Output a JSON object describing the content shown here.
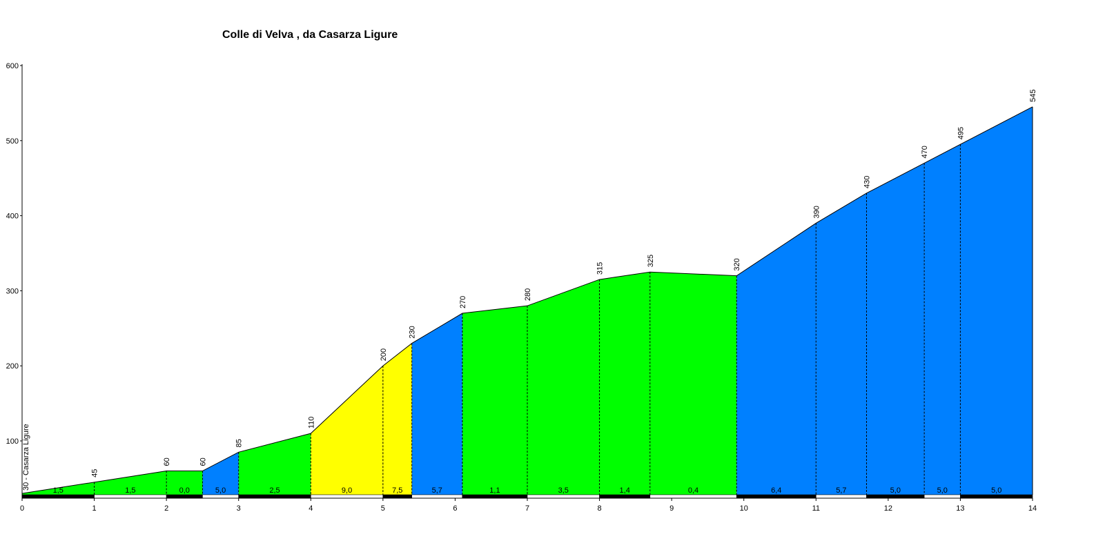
{
  "chart_data": {
    "type": "area",
    "title": "Colle di Velva , da  Casarza Ligure",
    "xlabel": "",
    "ylabel": "",
    "xlim": [
      0,
      14
    ],
    "ylim": [
      0,
      600
    ],
    "x_ticks": [
      "0",
      "1",
      "2",
      "3",
      "4",
      "5",
      "6",
      "7",
      "8",
      "9",
      "10",
      "11",
      "12",
      "13",
      "14"
    ],
    "y_ticks": [
      {
        "value": 100,
        "label": "100"
      },
      {
        "value": 200,
        "label": "200"
      },
      {
        "value": 300,
        "label": "300"
      },
      {
        "value": 400,
        "label": "400"
      },
      {
        "value": 500,
        "label": "500"
      },
      {
        "value": 600,
        "label": "600"
      }
    ],
    "start_label": "30 - Casarza Ligure",
    "profile_points": [
      {
        "km": 0,
        "alt": 30,
        "label": ""
      },
      {
        "km": 1,
        "alt": 45,
        "label": "45"
      },
      {
        "km": 2,
        "alt": 60,
        "label": "60"
      },
      {
        "km": 2.5,
        "alt": 60,
        "label": "60"
      },
      {
        "km": 3,
        "alt": 85,
        "label": "85"
      },
      {
        "km": 4,
        "alt": 110,
        "label": "110"
      },
      {
        "km": 5,
        "alt": 200,
        "label": "200"
      },
      {
        "km": 5.4,
        "alt": 230,
        "label": "230"
      },
      {
        "km": 6.1,
        "alt": 270,
        "label": "270"
      },
      {
        "km": 7,
        "alt": 280,
        "label": "280"
      },
      {
        "km": 8,
        "alt": 315,
        "label": "315"
      },
      {
        "km": 8.7,
        "alt": 325,
        "label": "325"
      },
      {
        "km": 9.9,
        "alt": 320,
        "label": "320"
      },
      {
        "km": 11,
        "alt": 390,
        "label": "390"
      },
      {
        "km": 11.7,
        "alt": 430,
        "label": "430"
      },
      {
        "km": 12.5,
        "alt": 470,
        "label": "470"
      },
      {
        "km": 13,
        "alt": 495,
        "label": "495"
      },
      {
        "km": 14,
        "alt": 545,
        "label": "545"
      }
    ],
    "segments": [
      {
        "start": 0,
        "end": 1,
        "gradient": "1,5",
        "color": "#00ff00"
      },
      {
        "start": 1,
        "end": 2,
        "gradient": "1,5",
        "color": "#00ff00"
      },
      {
        "start": 2,
        "end": 2.5,
        "gradient": "0,0",
        "color": "#00ff00"
      },
      {
        "start": 2.5,
        "end": 3,
        "gradient": "5,0",
        "color": "#0080ff"
      },
      {
        "start": 3,
        "end": 4,
        "gradient": "2,5",
        "color": "#00ff00"
      },
      {
        "start": 4,
        "end": 5,
        "gradient": "9,0",
        "color": "#ffff00"
      },
      {
        "start": 5,
        "end": 5.4,
        "gradient": "7,5",
        "color": "#ffff00"
      },
      {
        "start": 5.4,
        "end": 6.1,
        "gradient": "5,7",
        "color": "#0080ff"
      },
      {
        "start": 6.1,
        "end": 7,
        "gradient": "1,1",
        "color": "#00ff00"
      },
      {
        "start": 7,
        "end": 8,
        "gradient": "3,5",
        "color": "#00ff00"
      },
      {
        "start": 8,
        "end": 8.7,
        "gradient": "1,4",
        "color": "#00ff00"
      },
      {
        "start": 8.7,
        "end": 9.9,
        "gradient": "0,4",
        "color": "#00ff00"
      },
      {
        "start": 9.9,
        "end": 11,
        "gradient": "6,4",
        "color": "#0080ff"
      },
      {
        "start": 11,
        "end": 11.7,
        "gradient": "5,7",
        "color": "#0080ff"
      },
      {
        "start": 11.7,
        "end": 12.5,
        "gradient": "5,0",
        "color": "#0080ff"
      },
      {
        "start": 12.5,
        "end": 13,
        "gradient": "5,0",
        "color": "#0080ff"
      },
      {
        "start": 13,
        "end": 14,
        "gradient": "5,0",
        "color": "#0080ff"
      }
    ],
    "grid": false,
    "legend": "none"
  }
}
